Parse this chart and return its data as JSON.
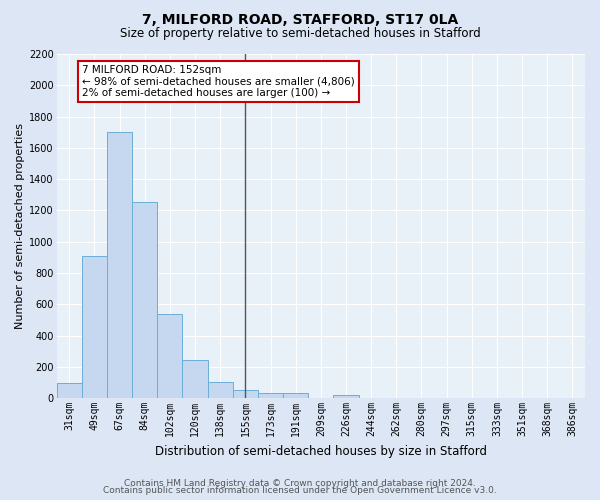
{
  "title": "7, MILFORD ROAD, STAFFORD, ST17 0LA",
  "subtitle": "Size of property relative to semi-detached houses in Stafford",
  "xlabel": "Distribution of semi-detached houses by size in Stafford",
  "ylabel": "Number of semi-detached properties",
  "footer1": "Contains HM Land Registry data © Crown copyright and database right 2024.",
  "footer2": "Contains public sector information licensed under the Open Government Licence v3.0.",
  "categories": [
    "31sqm",
    "49sqm",
    "67sqm",
    "84sqm",
    "102sqm",
    "120sqm",
    "138sqm",
    "155sqm",
    "173sqm",
    "191sqm",
    "209sqm",
    "226sqm",
    "244sqm",
    "262sqm",
    "280sqm",
    "297sqm",
    "315sqm",
    "333sqm",
    "351sqm",
    "368sqm",
    "386sqm"
  ],
  "values": [
    95,
    910,
    1700,
    1255,
    540,
    245,
    105,
    55,
    35,
    30,
    0,
    20,
    0,
    0,
    0,
    0,
    0,
    0,
    0,
    0,
    0
  ],
  "bar_color": "#c5d8f0",
  "bar_edge_color": "#6aaed6",
  "bar_linewidth": 0.7,
  "vline_x_index": 7,
  "vline_color": "#555555",
  "ylim": [
    0,
    2200
  ],
  "yticks": [
    0,
    200,
    400,
    600,
    800,
    1000,
    1200,
    1400,
    1600,
    1800,
    2000,
    2200
  ],
  "annotation_line1": "7 MILFORD ROAD: 152sqm",
  "annotation_line2": "← 98% of semi-detached houses are smaller (4,806)",
  "annotation_line3": "2% of semi-detached houses are larger (100) →",
  "annotation_box_color": "#ffffff",
  "annotation_border_color": "#cc0000",
  "bg_color": "#dce6f5",
  "plot_bg_color": "#e8f0f8",
  "grid_color": "#ffffff",
  "title_fontsize": 10,
  "subtitle_fontsize": 8.5,
  "ylabel_fontsize": 8,
  "xlabel_fontsize": 8.5,
  "tick_fontsize": 7,
  "annotation_fontsize": 7.5,
  "footer_fontsize": 6.5
}
